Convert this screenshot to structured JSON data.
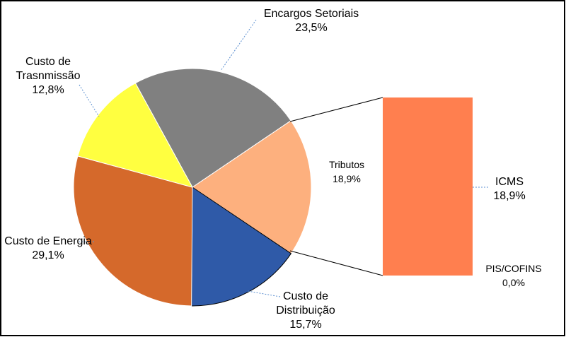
{
  "chart_data": {
    "type": "pie",
    "categories": [
      "Encargos Setoriais",
      "Tributos",
      "Custo de Distribuição",
      "Custo de Energia",
      "Custo de Trasnmissão"
    ],
    "values": [
      23.5,
      18.9,
      15.7,
      29.1,
      12.8
    ],
    "value_labels": [
      "23,5%",
      "18,9%",
      "15,7%",
      "29,1%",
      "12,8%"
    ],
    "colors": [
      "#808080",
      "#fdb07e",
      "#2f5aa8",
      "#d5692b",
      "#ffff40"
    ],
    "secondary": {
      "categories": [
        "ICMS",
        "PIS/COFINS"
      ],
      "values": [
        18.9,
        0.0
      ],
      "value_labels": [
        "18,9%",
        "0,0%"
      ],
      "color": "#ff7f4f"
    }
  }
}
